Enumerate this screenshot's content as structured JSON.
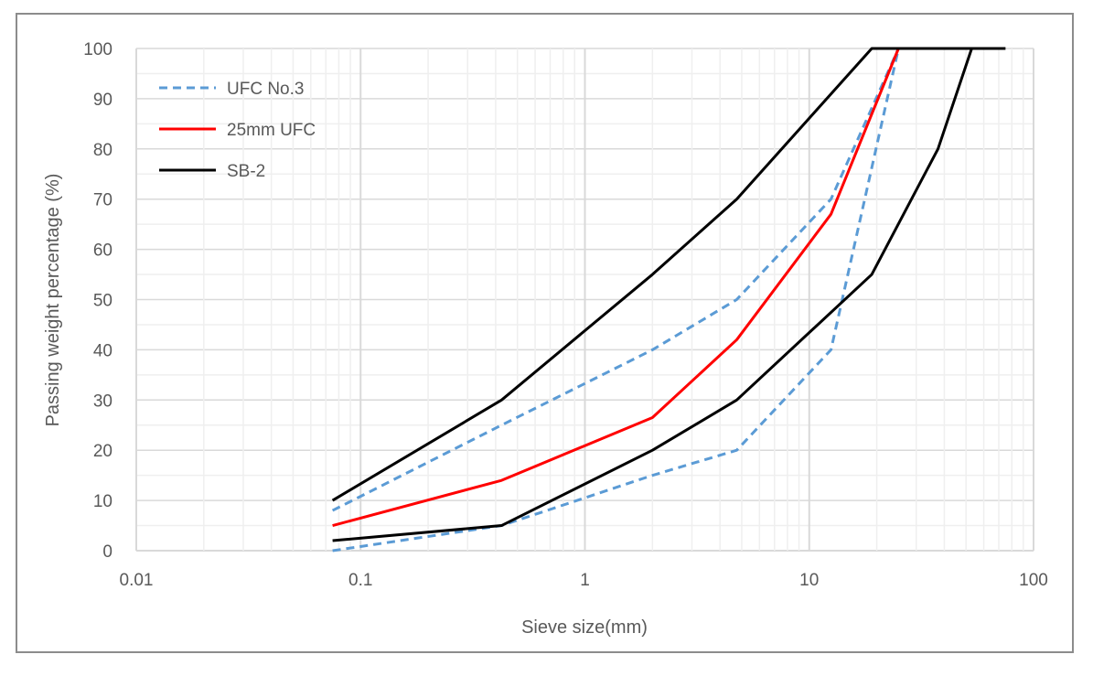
{
  "chart_data": {
    "type": "line",
    "title": "",
    "xlabel": "Sieve size(mm)",
    "ylabel": "Passing weight percentage (%)",
    "xscale": "log",
    "xlim": [
      0.01,
      100
    ],
    "ylim": [
      0,
      100
    ],
    "xticks": [
      "0.01",
      "0.1",
      "1",
      "10",
      "100"
    ],
    "xtick_values": [
      0.01,
      0.1,
      1,
      10,
      100
    ],
    "yticks": [
      "0",
      "10",
      "20",
      "30",
      "40",
      "50",
      "60",
      "70",
      "80",
      "90",
      "100"
    ],
    "yticks_values": [
      0,
      10,
      20,
      30,
      40,
      50,
      60,
      70,
      80,
      90,
      100
    ],
    "grid": true,
    "legend_position": "top-left",
    "legend": [
      "UFC No.3",
      "25mm UFC",
      "SB-2"
    ],
    "series": [
      {
        "name": "UFC No.3",
        "part": "upper",
        "color": "#5b9bd5",
        "dashed": true,
        "x": [
          0.075,
          0.425,
          2,
          4.75,
          12.5,
          25
        ],
        "y": [
          8,
          25,
          40,
          50,
          70,
          100
        ]
      },
      {
        "name": "UFC No.3",
        "part": "lower",
        "color": "#5b9bd5",
        "dashed": true,
        "x": [
          0.075,
          0.425,
          2,
          4.75,
          12.5,
          25
        ],
        "y": [
          0,
          5,
          15,
          20,
          40,
          100
        ]
      },
      {
        "name": "25mm UFC",
        "part": "main",
        "color": "#ff0000",
        "dashed": false,
        "x": [
          0.075,
          0.425,
          2,
          4.75,
          12.5,
          25
        ],
        "y": [
          5,
          14,
          26.5,
          42,
          67,
          100
        ]
      },
      {
        "name": "SB-2",
        "part": "upper",
        "color": "#000000",
        "dashed": false,
        "x": [
          0.075,
          0.425,
          2,
          4.75,
          19,
          75
        ],
        "y": [
          10,
          30,
          55,
          70,
          100,
          100
        ]
      },
      {
        "name": "SB-2",
        "part": "lower",
        "color": "#000000",
        "dashed": false,
        "x": [
          0.075,
          0.425,
          2,
          4.75,
          19,
          37.5,
          53
        ],
        "y": [
          2,
          5,
          20,
          30,
          55,
          80,
          100
        ]
      }
    ]
  }
}
